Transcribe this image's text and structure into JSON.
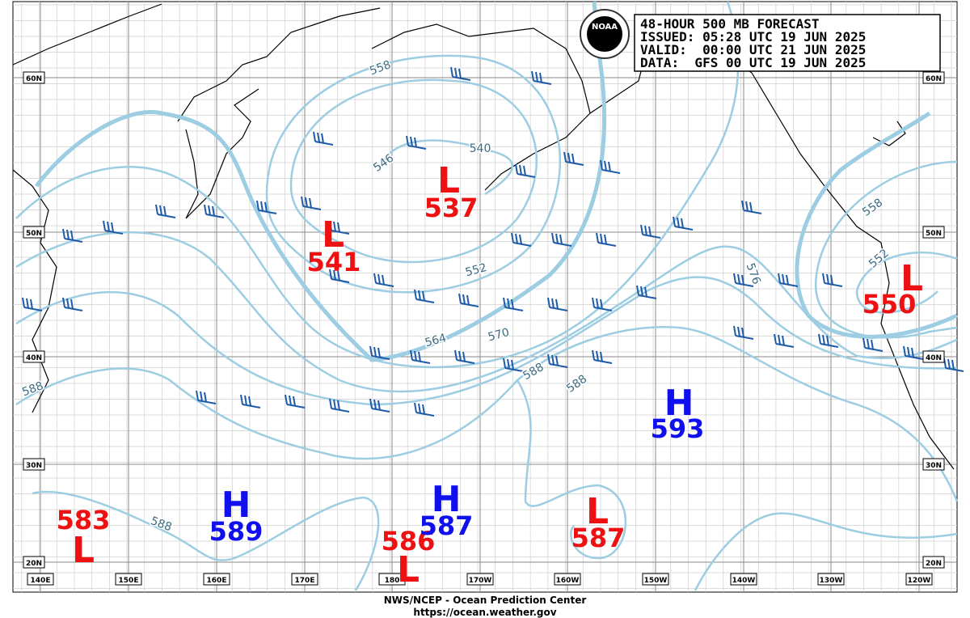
{
  "header": {
    "lines": [
      "48-HOUR 500 MB FORECAST",
      "ISSUED: 05:28 UTC 19 JUN 2025",
      "VALID:  00:00 UTC 21 JUN 2025",
      "DATA:  GFS 00 UTC 19 JUN 2025"
    ]
  },
  "logo": "NOAA",
  "centers": [
    {
      "label": "L",
      "value": 537
    },
    {
      "label": "L",
      "value": 541
    },
    {
      "label": "L",
      "value": 550
    },
    {
      "label": "H",
      "value": 593
    },
    {
      "label": "L",
      "value": 583
    },
    {
      "label": "H",
      "value": 589
    },
    {
      "label": "L",
      "value": 586
    },
    {
      "label": "H",
      "value": 587
    },
    {
      "label": "L",
      "value": 587
    }
  ],
  "contour_labels": [
    558,
    540,
    546,
    552,
    564,
    570,
    588,
    588,
    576,
    588,
    588,
    558,
    552
  ],
  "lat_labels": [
    "60N",
    "50N",
    "40N",
    "30N",
    "20N"
  ],
  "lon_labels": [
    "140E",
    "150E",
    "160E",
    "170E",
    "180",
    "170W",
    "160W",
    "150W",
    "140W",
    "130W",
    "120W"
  ],
  "footer": {
    "agency": "NWS/NCEP - Ocean Prediction Center",
    "url": "https://ocean.weather.gov"
  }
}
